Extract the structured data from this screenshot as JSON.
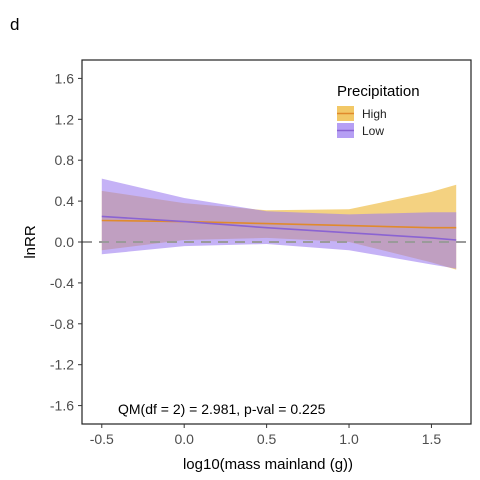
{
  "panel_label": "d",
  "colors": {
    "high": "#F0C050",
    "high_line": "#E08A2C",
    "low": "#9B7BF0",
    "low_line": "#8A63D2",
    "zero_line": "#9a9a9a",
    "axis_text": "#4d4d4d"
  },
  "chart_data": {
    "type": "line",
    "title": "",
    "xlabel": "log10(mass mainland (g))",
    "ylabel": "lnRR",
    "xlim": [
      -0.62,
      1.74
    ],
    "ylim": [
      -1.78,
      1.78
    ],
    "x_ticks": [
      -0.5,
      0.0,
      0.5,
      1.0,
      1.5
    ],
    "x_tick_labels": [
      "-0.5",
      "0.0",
      "0.5",
      "1.0",
      "1.5"
    ],
    "y_ticks": [
      1.6,
      1.2,
      0.8,
      0.4,
      0.0,
      -0.4,
      -0.8,
      -1.2,
      -1.6
    ],
    "y_tick_labels": [
      "1.6",
      "1.2",
      "0.8",
      "0.4",
      "0.0",
      "-0.4",
      "-0.8",
      "-1.2",
      "-1.6"
    ],
    "reference_line_y": 0.0,
    "legend": {
      "title": "Precipitation",
      "placement": "top-right"
    },
    "series": [
      {
        "name": "High",
        "x": [
          -0.5,
          0.0,
          0.5,
          1.0,
          1.5,
          1.65
        ],
        "fit": [
          0.21,
          0.2,
          0.18,
          0.16,
          0.14,
          0.14
        ],
        "lower": [
          -0.08,
          0.02,
          0.04,
          0.0,
          -0.2,
          -0.27
        ],
        "upper": [
          0.5,
          0.38,
          0.31,
          0.32,
          0.49,
          0.56
        ]
      },
      {
        "name": "Low",
        "x": [
          -0.5,
          0.0,
          0.5,
          1.0,
          1.5,
          1.65
        ],
        "fit": [
          0.25,
          0.2,
          0.14,
          0.09,
          0.04,
          0.02
        ],
        "lower": [
          -0.12,
          -0.04,
          -0.02,
          -0.08,
          -0.22,
          -0.26
        ],
        "upper": [
          0.62,
          0.43,
          0.3,
          0.27,
          0.29,
          0.29
        ]
      }
    ],
    "annotation": "QM(df = 2) = 2.981, p-val = 0.225"
  }
}
